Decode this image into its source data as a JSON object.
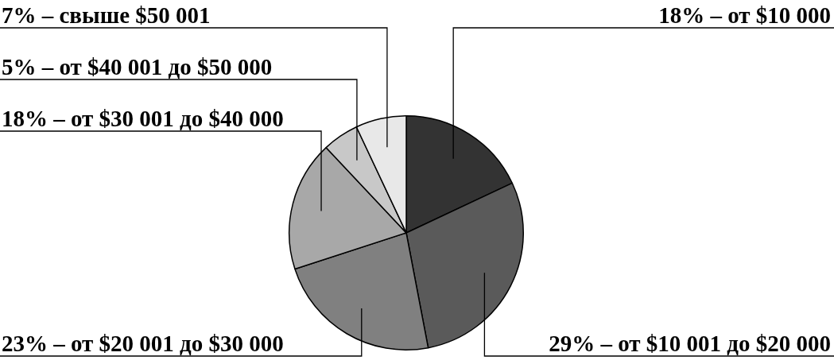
{
  "chart_data": {
    "type": "pie",
    "categories": [
      "18% – от $10 000",
      "29% – от $10 001 до $20 000",
      "23% – от $20 001 до $30 000",
      "18% – от $30 001 до $40 000",
      "5% – от $40 001 до $50 000",
      "7% – свыше $50 001"
    ],
    "values": [
      18,
      29,
      23,
      18,
      5,
      7
    ],
    "colors": [
      "#333333",
      "#5a5a5a",
      "#808080",
      "#a8a8a8",
      "#c8c8c8",
      "#e8e8e8"
    ],
    "legend": false
  }
}
